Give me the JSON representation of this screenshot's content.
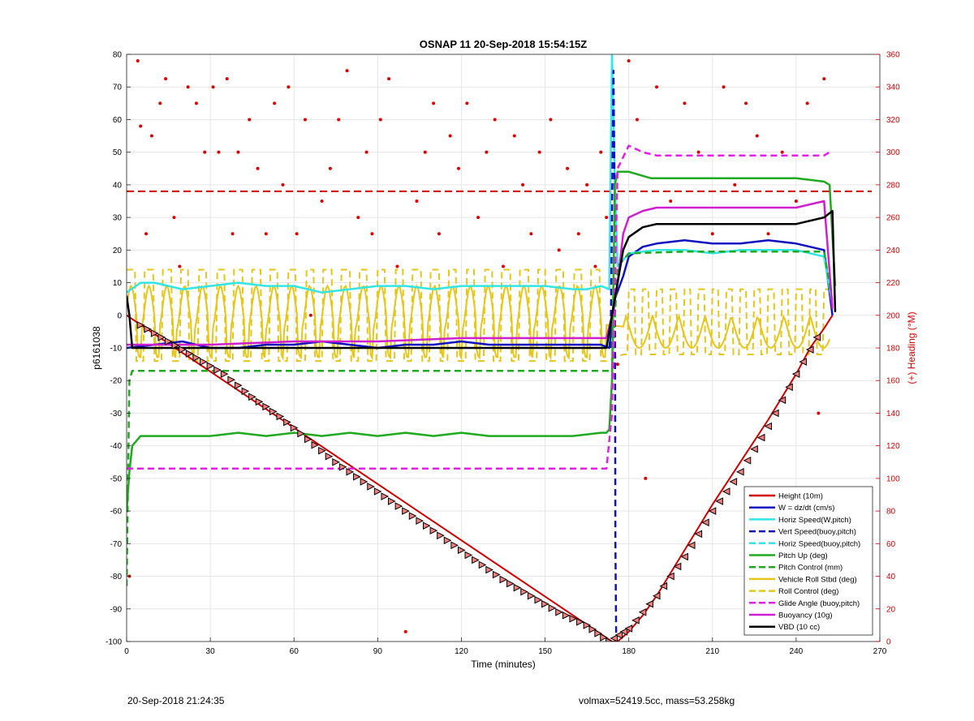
{
  "chart_data": {
    "type": "line",
    "title": "OSNAP 11 20-Sep-2018 15:54:15Z",
    "xlabel": "Time (minutes)",
    "ylabel": "p6161038",
    "y2label": "(+) Heading (°M)",
    "xlim": [
      0,
      270
    ],
    "ylim": [
      -100,
      80
    ],
    "y2lim": [
      0,
      360
    ],
    "xticks": [
      0,
      30,
      60,
      90,
      120,
      150,
      180,
      210,
      240,
      270
    ],
    "yticks": [
      -100,
      -90,
      -80,
      -70,
      -60,
      -50,
      -40,
      -30,
      -20,
      -10,
      0,
      10,
      20,
      30,
      40,
      50,
      60,
      70,
      80
    ],
    "y2ticks": [
      0,
      20,
      40,
      60,
      80,
      100,
      120,
      140,
      160,
      180,
      200,
      220,
      240,
      260,
      280,
      300,
      320,
      340,
      360
    ],
    "grid": true,
    "legend_position": "bottom-right",
    "colors": {
      "height": "#d40000",
      "w": "#1010c0",
      "horiz": "#33e5e5",
      "pitch": "#1faa1f",
      "roll": "#e5c619",
      "glide": "#e51fe5",
      "buoy": "#d01fd0",
      "vbd": "#000000",
      "heading": "#e00000",
      "right_axis": "#d40000"
    },
    "series": [
      {
        "name": "Height (10m)",
        "style": "solid",
        "color": "#d40000",
        "x": [
          0,
          174,
          176,
          180,
          185,
          190,
          195,
          200,
          210,
          220,
          230,
          240,
          245,
          250,
          253
        ],
        "y": [
          0,
          -100,
          -100,
          -97,
          -92,
          -86,
          -79,
          -72,
          -58,
          -45,
          -32,
          -18,
          -10,
          -4,
          0
        ]
      },
      {
        "name": "W = dz/dt (cm/s)",
        "style": "solid",
        "color": "#1010c0",
        "x": [
          0,
          10,
          20,
          30,
          40,
          50,
          60,
          70,
          80,
          90,
          100,
          110,
          120,
          130,
          140,
          150,
          160,
          170,
          173,
          175,
          178,
          180,
          185,
          190,
          200,
          210,
          220,
          230,
          240,
          245,
          250,
          253
        ],
        "y": [
          -10,
          -9,
          -8,
          -10,
          -10,
          -9,
          -9,
          -8,
          -9,
          -10,
          -9,
          -9,
          -8,
          -9,
          -9,
          -9,
          -9,
          -9,
          -10,
          5,
          12,
          18,
          21,
          22,
          23,
          22,
          22,
          23,
          22,
          21,
          20,
          0
        ]
      },
      {
        "name": "Horiz Speed(W,pitch)",
        "style": "solid",
        "color": "#33e5e5",
        "x": [
          0,
          5,
          10,
          20,
          30,
          40,
          50,
          60,
          70,
          80,
          90,
          100,
          110,
          120,
          130,
          140,
          150,
          160,
          165,
          170,
          173,
          174,
          175,
          176,
          178,
          180,
          190,
          200,
          210,
          220,
          230,
          240,
          250,
          253
        ],
        "y": [
          7,
          10,
          10,
          8,
          9,
          10,
          9,
          9,
          7,
          8,
          9,
          9,
          8,
          9,
          9,
          9,
          9,
          8,
          8,
          9,
          8,
          80,
          40,
          15,
          17,
          19,
          20,
          20,
          19,
          20,
          20,
          20,
          18,
          3
        ]
      },
      {
        "name": "Vert Speed(buoy,pitch)",
        "style": "dashed",
        "color": "#1010c0",
        "x": [
          173.5,
          174.5,
          175,
          175.2,
          175.5
        ],
        "y": [
          -10,
          75,
          30,
          -70,
          -100
        ]
      },
      {
        "name": "Horiz Speed(buoy,pitch)",
        "style": "dashed",
        "color": "#33e5e5",
        "x": [],
        "y": []
      },
      {
        "name": "Pitch Up (deg)",
        "style": "solid",
        "color": "#1faa1f",
        "x": [
          0,
          1,
          2,
          5,
          10,
          20,
          30,
          40,
          50,
          60,
          70,
          80,
          90,
          100,
          110,
          120,
          130,
          140,
          150,
          160,
          170,
          172,
          173,
          174,
          175,
          176,
          180,
          184,
          188,
          192,
          200,
          210,
          220,
          230,
          240,
          250,
          252,
          254
        ],
        "y": [
          -60,
          -48,
          -40,
          -37,
          -37,
          -37,
          -37,
          -36,
          -37,
          -36,
          -37,
          -36,
          -37,
          -36,
          -37,
          -36,
          -37,
          -37,
          -37,
          -37,
          -36,
          -36,
          -35,
          -20,
          40,
          44,
          44,
          43,
          42,
          42,
          42,
          42,
          42,
          42,
          42,
          41,
          40,
          9
        ]
      },
      {
        "name": "Pitch Control (mm)",
        "style": "dashed",
        "color": "#1faa1f",
        "x": [
          0,
          1,
          2,
          173,
          174,
          176,
          180,
          200,
          220,
          240,
          250,
          253
        ],
        "y": [
          -83,
          -20,
          -17,
          -17,
          -17,
          15,
          19,
          19.5,
          19.5,
          19.5,
          19.5,
          4
        ]
      },
      {
        "name": "Vehicle Roll Stbd (deg)",
        "style": "solid",
        "color": "#e5c619",
        "x": [
          0,
          172,
          180,
          253
        ],
        "y": [
          0,
          0,
          0,
          0
        ]
      },
      {
        "name": "Roll Control (deg)",
        "style": "dashed",
        "color": "#e5c619",
        "x": [
          0,
          172,
          180,
          253
        ],
        "y": [
          15,
          -15,
          10,
          -15
        ]
      },
      {
        "name": "Glide Angle (buoy,pitch)",
        "style": "dashed",
        "color": "#e51fe5",
        "x": [
          0,
          10,
          30,
          60,
          90,
          120,
          150,
          172,
          174,
          176,
          180,
          185,
          190,
          200,
          220,
          240,
          250,
          252
        ],
        "y": [
          -47,
          -47,
          -47,
          -47,
          -47,
          -47,
          -47,
          -47,
          -30,
          45,
          52,
          50,
          49,
          49,
          49,
          49,
          49,
          50
        ]
      },
      {
        "name": "Buoyancy (10g)",
        "style": "solid",
        "color": "#d01fd0",
        "x": [
          0,
          10,
          30,
          60,
          90,
          120,
          150,
          172,
          174,
          176,
          178,
          180,
          185,
          190,
          200,
          220,
          240,
          250,
          253
        ],
        "y": [
          -9,
          -9,
          -9,
          -8,
          -8,
          -7,
          -7,
          -7,
          0,
          10,
          25,
          30,
          32,
          33,
          33,
          33,
          33,
          35,
          2
        ]
      },
      {
        "name": "VBD (10 cc)",
        "style": "solid",
        "color": "#000000",
        "x": [
          0,
          1,
          2,
          10,
          30,
          60,
          90,
          120,
          150,
          172,
          174,
          176,
          178,
          180,
          185,
          190,
          200,
          220,
          240,
          250,
          253,
          254
        ],
        "y": [
          6,
          0,
          -10,
          -10,
          -10,
          -10,
          -10,
          -10,
          -10,
          -10,
          0,
          10,
          20,
          24,
          27,
          28,
          28,
          28,
          28,
          30,
          32,
          1
        ]
      },
      {
        "name": "Heading",
        "axis": "right",
        "style": "markers",
        "color": "#e00000",
        "x": [
          1,
          4,
          5,
          7,
          9,
          12,
          14,
          17,
          19,
          22,
          25,
          28,
          31,
          33,
          36,
          38,
          40,
          44,
          47,
          50,
          53,
          56,
          58,
          61,
          64,
          66,
          70,
          73,
          76,
          79,
          83,
          86,
          88,
          91,
          94,
          97,
          100,
          104,
          107,
          110,
          112,
          116,
          119,
          122,
          126,
          129,
          132,
          135,
          139,
          142,
          145,
          148,
          152,
          155,
          158,
          162,
          165,
          168,
          170,
          172,
          176,
          180,
          183,
          186,
          190,
          195,
          200,
          205,
          210,
          214,
          218,
          222,
          226,
          230,
          235,
          240,
          244,
          248,
          250
        ],
        "y": [
          40,
          356,
          316,
          250,
          310,
          330,
          345,
          260,
          230,
          340,
          330,
          300,
          340,
          300,
          345,
          250,
          300,
          320,
          290,
          250,
          330,
          280,
          340,
          250,
          320,
          200,
          270,
          290,
          320,
          350,
          260,
          300,
          250,
          320,
          345,
          230,
          6,
          270,
          300,
          330,
          250,
          310,
          290,
          330,
          260,
          300,
          320,
          230,
          310,
          280,
          250,
          300,
          320,
          240,
          290,
          250,
          280,
          230,
          300,
          260,
          170,
          356,
          320,
          100,
          340,
          270,
          330,
          300,
          250,
          340,
          280,
          330,
          310,
          250,
          300,
          270,
          330,
          140,
          345
        ]
      }
    ],
    "roll_marker_series": {
      "x": [
        5,
        15,
        25,
        35,
        45,
        55,
        65,
        75,
        85,
        95,
        105,
        115,
        125,
        135,
        145,
        155,
        165,
        173,
        180,
        190,
        200,
        210,
        220,
        230,
        240,
        250
      ],
      "y": [
        -3,
        -8,
        -13,
        -18,
        -25,
        -31,
        -38,
        -45,
        -51,
        -57,
        -63,
        -69,
        -75,
        -81,
        -86,
        -91,
        -95,
        -100,
        -96,
        -86,
        -74,
        -60,
        -48,
        -34,
        -18,
        -3
      ]
    }
  },
  "footer": {
    "left": "20-Sep-2018 21:24:35",
    "right": "volmax=52419.5cc, mass=53.258kg"
  }
}
